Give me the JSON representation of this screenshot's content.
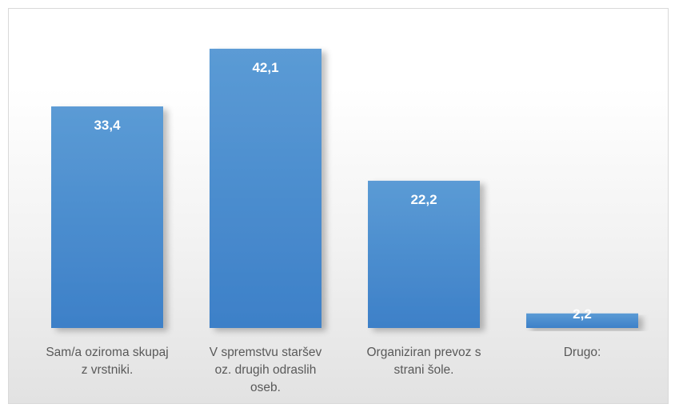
{
  "chart_data": {
    "type": "bar",
    "categories": [
      [
        "Sam/a oziroma skupaj",
        "z vrstniki."
      ],
      [
        "V spremstvu staršev",
        "oz. drugih odraslih",
        "oseb."
      ],
      [
        "Organiziran prevoz s",
        "strani šole."
      ],
      [
        "Drugo:"
      ]
    ],
    "values": [
      33.4,
      42.1,
      22.2,
      2.2
    ],
    "value_labels": [
      "33,4",
      "42,1",
      "22,2",
      "2,2"
    ],
    "title": "",
    "xlabel": "",
    "ylabel": "",
    "ylim": [
      0,
      44.5
    ],
    "grid": false,
    "legend": "none",
    "colors": {
      "bar_top": "#5b9bd5",
      "bar_bottom": "#3d80c8",
      "label_text": "#595959",
      "value_text": "#ffffff"
    }
  }
}
